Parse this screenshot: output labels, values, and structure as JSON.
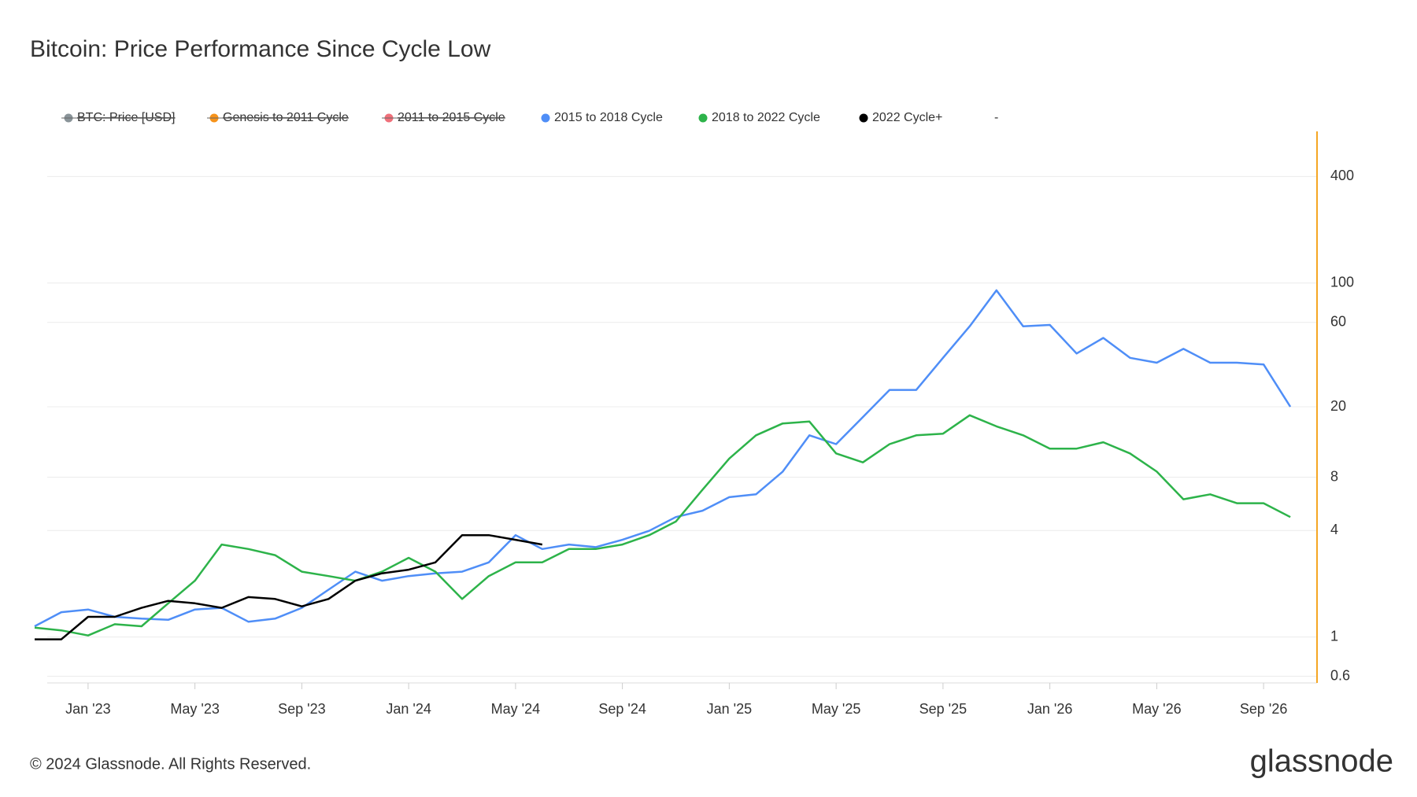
{
  "chart_data": {
    "type": "line",
    "title": "Bitcoin: Price Performance Since Cycle Low",
    "x": [
      "2022-11",
      "2022-12",
      "2023-01",
      "2023-02",
      "2023-03",
      "2023-04",
      "2023-05",
      "2023-06",
      "2023-07",
      "2023-08",
      "2023-09",
      "2023-10",
      "2023-11",
      "2023-12",
      "2024-01",
      "2024-02",
      "2024-03",
      "2024-04",
      "2024-05",
      "2024-06",
      "2024-07",
      "2024-08",
      "2024-09",
      "2024-10",
      "2024-11",
      "2024-12",
      "2025-01",
      "2025-02",
      "2025-03",
      "2025-04",
      "2025-05",
      "2025-06",
      "2025-07",
      "2025-08",
      "2025-09",
      "2025-10",
      "2025-11",
      "2025-12",
      "2026-01",
      "2026-02",
      "2026-03",
      "2026-04",
      "2026-05",
      "2026-06",
      "2026-07",
      "2026-08",
      "2026-09",
      "2026-10"
    ],
    "series": [
      {
        "name": "BTC: Price [USD]",
        "color": "#8a9499",
        "hidden": true
      },
      {
        "name": "Genesis to 2011 Cycle",
        "color": "#f7931a",
        "hidden": true
      },
      {
        "name": "2011 to 2015 Cycle",
        "color": "#f0707a",
        "hidden": true
      },
      {
        "name": "2015 to 2018 Cycle",
        "color": "#4f8ef7",
        "hidden": false,
        "values": [
          1.15,
          1.38,
          1.43,
          1.3,
          1.27,
          1.25,
          1.43,
          1.46,
          1.22,
          1.27,
          1.46,
          1.85,
          2.34,
          2.08,
          2.21,
          2.29,
          2.34,
          2.64,
          3.76,
          3.14,
          3.33,
          3.22,
          3.54,
          3.98,
          4.76,
          5.17,
          6.17,
          6.4,
          8.6,
          13.8,
          12.3,
          17.5,
          24.9,
          24.9,
          37.8,
          57,
          91,
          57,
          58,
          40,
          49,
          37.8,
          35.5,
          42.5,
          35.5,
          35.5,
          34.7,
          20
        ]
      },
      {
        "name": "2018 to 2022 Cycle",
        "color": "#2db34a",
        "hidden": false,
        "values": [
          1.13,
          1.09,
          1.02,
          1.18,
          1.15,
          1.55,
          2.08,
          3.33,
          3.14,
          2.9,
          2.34,
          2.21,
          2.08,
          2.34,
          2.8,
          2.34,
          1.64,
          2.21,
          2.64,
          2.64,
          3.14,
          3.14,
          3.33,
          3.76,
          4.49,
          6.8,
          10.2,
          13.8,
          16.1,
          16.5,
          10.9,
          9.7,
          12.3,
          13.8,
          14.1,
          17.9,
          15.5,
          13.8,
          11.6,
          11.6,
          12.6,
          10.9,
          8.6,
          6.0,
          6.4,
          5.7,
          5.7,
          4.76
        ]
      },
      {
        "name": "2022 Cycle+",
        "color": "#000000",
        "hidden": false,
        "values": [
          0.97,
          0.97,
          1.3,
          1.3,
          1.46,
          1.6,
          1.55,
          1.46,
          1.68,
          1.64,
          1.49,
          1.64,
          2.08,
          2.29,
          2.4,
          2.64,
          3.76,
          3.76,
          3.54,
          3.33,
          null,
          null,
          null,
          null,
          null,
          null,
          null,
          null,
          null,
          null,
          null,
          null,
          null,
          null,
          null,
          null,
          null,
          null,
          null,
          null,
          null,
          null,
          null,
          null,
          null,
          null,
          null,
          null
        ]
      },
      {
        "name": "-",
        "hidden": false
      }
    ],
    "xlim": [
      "2022-11",
      "2026-11"
    ],
    "xticks": [
      {
        "value": "2023-01",
        "label": "Jan '23"
      },
      {
        "value": "2023-05",
        "label": "May '23"
      },
      {
        "value": "2023-09",
        "label": "Sep '23"
      },
      {
        "value": "2024-01",
        "label": "Jan '24"
      },
      {
        "value": "2024-05",
        "label": "May '24"
      },
      {
        "value": "2024-09",
        "label": "Sep '24"
      },
      {
        "value": "2025-01",
        "label": "Jan '25"
      },
      {
        "value": "2025-05",
        "label": "May '25"
      },
      {
        "value": "2025-09",
        "label": "Sep '25"
      },
      {
        "value": "2026-01",
        "label": "Jan '26"
      },
      {
        "value": "2026-05",
        "label": "May '26"
      },
      {
        "value": "2026-09",
        "label": "Sep '26"
      }
    ],
    "ylim": [
      0.55,
      720
    ],
    "yticks": [
      0.6,
      1,
      4,
      8,
      20,
      60,
      100,
      400
    ],
    "log_y": true,
    "grid": true,
    "legend": "top",
    "axis_color": "#f5a623"
  },
  "footer": {
    "copyright": "© 2024 Glassnode. All Rights Reserved.",
    "logo": "glassnode"
  }
}
